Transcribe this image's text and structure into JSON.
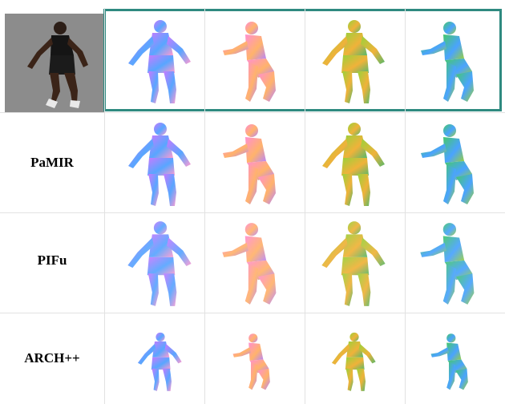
{
  "rows": [
    {
      "label": "",
      "kind": "ours"
    },
    {
      "label": "PaMIR",
      "kind": "pamir"
    },
    {
      "label": "PIFu",
      "kind": "pifu"
    },
    {
      "label": "ARCH++",
      "kind": "arch"
    }
  ],
  "views": [
    "front",
    "side",
    "back",
    "other-side"
  ],
  "colors": {
    "highlight": "#2f8a80",
    "photo_background": "#8b8b8b",
    "normal_front": "#c77bff",
    "normal_side": "#ff8fd1",
    "normal_back": "#9ad13b",
    "normal_other": "#46c86a"
  }
}
